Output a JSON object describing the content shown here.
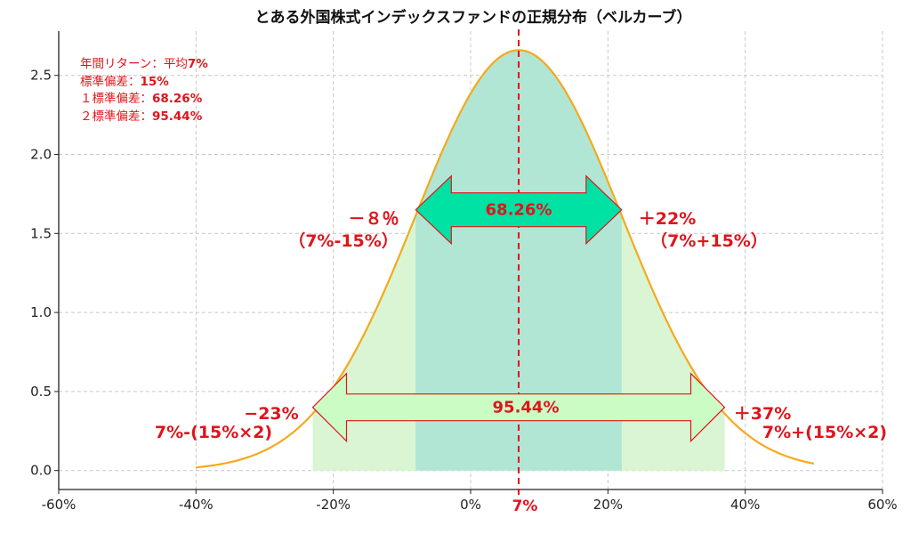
{
  "chart_data": {
    "type": "area",
    "title": "とある外国株式インデックスファンドの正規分布（ベルカーブ）",
    "mean": 7,
    "sd": 15,
    "peak_y": 2.66,
    "xlim": [
      -60,
      60
    ],
    "ylim": [
      -0.12,
      2.78
    ],
    "curve_domain": [
      -40,
      50
    ],
    "x_ticks": [
      -60,
      -40,
      -20,
      0,
      20,
      40,
      60
    ],
    "x_tick_labels": [
      "-60%",
      "-40%",
      "-20%",
      "0%",
      "20%",
      "40%",
      "60%"
    ],
    "y_ticks": [
      0.0,
      0.5,
      1.0,
      1.5,
      2.0,
      2.5
    ],
    "y_tick_labels": [
      "0.0",
      "0.5",
      "1.0",
      "1.5",
      "2.0",
      "2.5"
    ],
    "grid": true,
    "bands": [
      {
        "from": -23,
        "to": 37,
        "label": "95.44%",
        "color": "#d9f5d3"
      },
      {
        "from": -8,
        "to": 22,
        "label": "68.26%",
        "color": "#b2e6d4"
      }
    ],
    "mean_line_label": "7%",
    "annotations": {
      "minus1": [
        "－８％",
        "（7%-15%）"
      ],
      "plus1": [
        "＋22%",
        "（7%+15%）"
      ],
      "minus2": [
        "−23%",
        "7%-(15%×2)"
      ],
      "plus2": [
        "＋37%",
        "7%+(15%×2)"
      ]
    },
    "info_box": {
      "line1_prefix": "年間リターン：平均",
      "line1_value": "7%",
      "line2_prefix": "標準偏差：",
      "line2_value": "15%",
      "line3_prefix": "１標準偏差：",
      "line3_value": "68.26%",
      "line4_prefix": "２標準偏差：",
      "line4_value": "95.44%"
    },
    "colors": {
      "curve": "#f5a91c",
      "mean_line": "#e0141b",
      "arrow1_fill": "#00e2a4",
      "arrow2_fill": "#cbfcc4",
      "arrow_stroke": "#e0141b",
      "annotation_text": "#e0141b"
    }
  }
}
